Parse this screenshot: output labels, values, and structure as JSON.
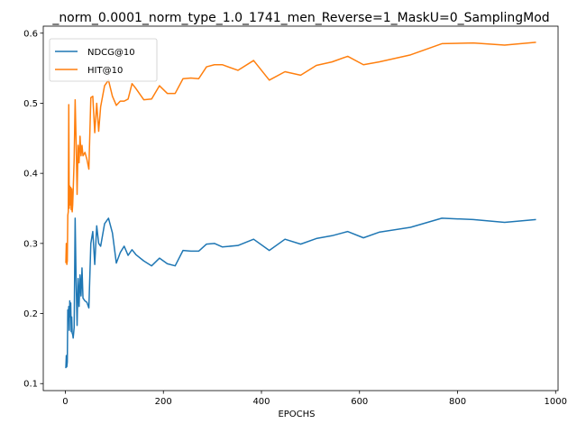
{
  "chart_data": {
    "type": "line",
    "title": "_norm_0.0001_norm_type_1.0_1741_men_Reverse=1_MaskU=0_SamplingMod",
    "xlabel": "EPOCHS",
    "ylabel": "",
    "xlim": [
      -45,
      1005
    ],
    "ylim": [
      0.09,
      0.61
    ],
    "xticks": [
      0,
      200,
      400,
      600,
      800,
      1000
    ],
    "yticks": [
      0.1,
      0.2,
      0.3,
      0.4,
      0.5,
      0.6
    ],
    "xtick_labels": [
      "0",
      "200",
      "400",
      "600",
      "800",
      "1000"
    ],
    "ytick_labels": [
      "0.1",
      "0.2",
      "0.3",
      "0.4",
      "0.5",
      "0.6"
    ],
    "grid": false,
    "legend_position": "upper-left",
    "colors": {
      "NDCG@10": "#1f77b4",
      "HIT@10": "#ff7f0e"
    },
    "series": [
      {
        "name": "NDCG@10",
        "x": [
          1,
          2,
          3,
          4,
          5,
          6,
          7,
          8,
          9,
          10,
          11,
          12,
          13,
          14,
          15,
          16,
          18,
          20,
          22,
          24,
          26,
          28,
          30,
          32,
          34,
          36,
          40,
          44,
          48,
          52,
          56,
          60,
          64,
          68,
          72,
          80,
          88,
          96,
          104,
          112,
          120,
          128,
          136,
          144,
          160,
          176,
          192,
          208,
          224,
          240,
          256,
          272,
          288,
          304,
          320,
          352,
          384,
          416,
          448,
          480,
          512,
          544,
          576,
          608,
          640,
          704,
          768,
          832,
          896,
          960
        ],
        "y": [
          0.122,
          0.14,
          0.124,
          0.131,
          0.205,
          0.198,
          0.21,
          0.176,
          0.218,
          0.195,
          0.215,
          0.174,
          0.195,
          0.172,
          0.17,
          0.165,
          0.18,
          0.336,
          0.245,
          0.183,
          0.25,
          0.21,
          0.255,
          0.225,
          0.265,
          0.222,
          0.218,
          0.216,
          0.208,
          0.3,
          0.317,
          0.27,
          0.325,
          0.3,
          0.296,
          0.328,
          0.336,
          0.315,
          0.272,
          0.287,
          0.296,
          0.283,
          0.291,
          0.284,
          0.275,
          0.268,
          0.279,
          0.271,
          0.268,
          0.29,
          0.289,
          0.289,
          0.299,
          0.3,
          0.295,
          0.297,
          0.306,
          0.29,
          0.306,
          0.299,
          0.307,
          0.311,
          0.317,
          0.308,
          0.316,
          0.323,
          0.336,
          0.334,
          0.33,
          0.334
        ]
      },
      {
        "name": "HIT@10",
        "x": [
          1,
          2,
          3,
          4,
          5,
          6,
          7,
          8,
          9,
          10,
          11,
          12,
          13,
          14,
          15,
          16,
          18,
          20,
          22,
          24,
          26,
          28,
          30,
          32,
          34,
          36,
          40,
          44,
          48,
          52,
          56,
          60,
          64,
          68,
          72,
          80,
          88,
          96,
          104,
          112,
          120,
          128,
          136,
          144,
          160,
          176,
          192,
          208,
          224,
          240,
          256,
          272,
          288,
          304,
          320,
          352,
          384,
          416,
          448,
          480,
          512,
          544,
          576,
          608,
          640,
          704,
          768,
          832,
          896,
          960
        ],
        "y": [
          0.272,
          0.3,
          0.27,
          0.275,
          0.34,
          0.345,
          0.498,
          0.35,
          0.382,
          0.355,
          0.38,
          0.348,
          0.378,
          0.345,
          0.355,
          0.375,
          0.42,
          0.505,
          0.445,
          0.37,
          0.44,
          0.415,
          0.453,
          0.425,
          0.44,
          0.425,
          0.43,
          0.42,
          0.406,
          0.508,
          0.51,
          0.458,
          0.5,
          0.46,
          0.495,
          0.525,
          0.533,
          0.51,
          0.497,
          0.503,
          0.503,
          0.506,
          0.528,
          0.521,
          0.505,
          0.506,
          0.525,
          0.514,
          0.514,
          0.535,
          0.536,
          0.535,
          0.552,
          0.555,
          0.555,
          0.547,
          0.561,
          0.533,
          0.545,
          0.54,
          0.554,
          0.559,
          0.567,
          0.555,
          0.559,
          0.569,
          0.585,
          0.586,
          0.583,
          0.587
        ]
      }
    ]
  }
}
